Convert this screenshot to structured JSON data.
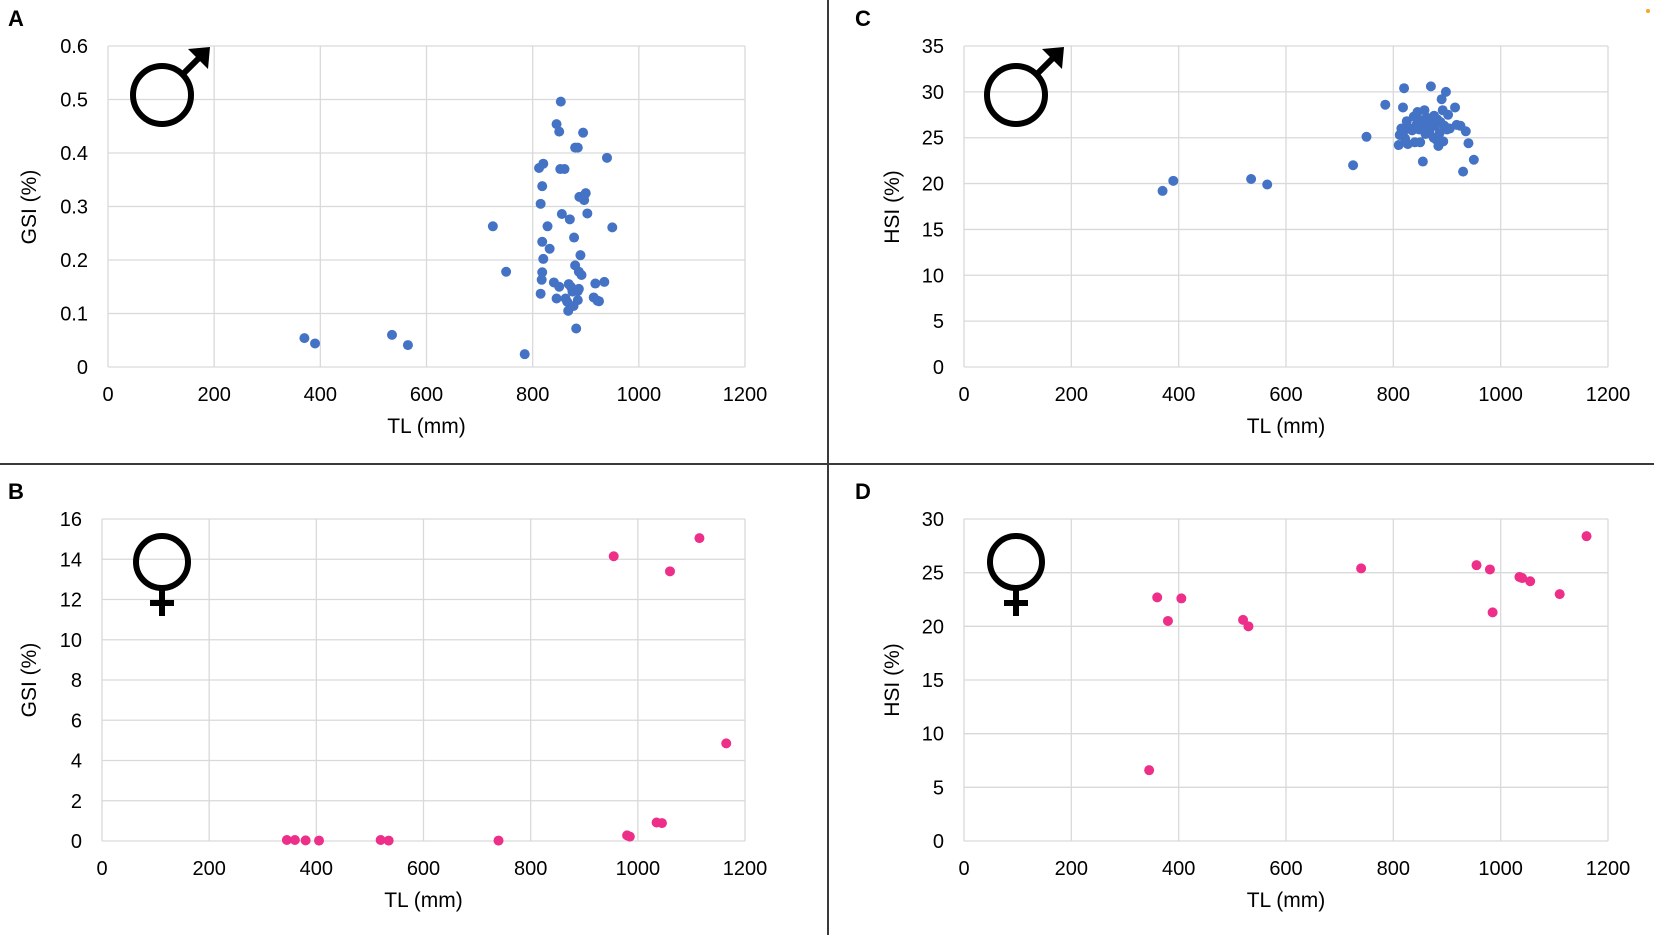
{
  "chart_data": [
    {
      "type": "scatter",
      "panel": "A",
      "sex_symbol": "male-symbol",
      "xlabel": "TL (mm)",
      "ylabel": "GSI (%)",
      "xlim": [
        0,
        1200
      ],
      "ylim": [
        0,
        0.6
      ],
      "xticks": [
        "0",
        "200",
        "400",
        "600",
        "800",
        "1000",
        "1200"
      ],
      "yticks": [
        "0",
        "0.1",
        "0.2",
        "0.3",
        "0.4",
        "0.5",
        "0.6"
      ],
      "grid": true,
      "color": "#4472c4",
      "points": [
        [
          370,
          0.054
        ],
        [
          390,
          0.044
        ],
        [
          535,
          0.06
        ],
        [
          565,
          0.041
        ],
        [
          725,
          0.263
        ],
        [
          750,
          0.178
        ],
        [
          785,
          0.024
        ],
        [
          812,
          0.372
        ],
        [
          815,
          0.137
        ],
        [
          815,
          0.305
        ],
        [
          817,
          0.163
        ],
        [
          818,
          0.177
        ],
        [
          818,
          0.234
        ],
        [
          818,
          0.338
        ],
        [
          820,
          0.38
        ],
        [
          820,
          0.202
        ],
        [
          828,
          0.263
        ],
        [
          832,
          0.221
        ],
        [
          840,
          0.158
        ],
        [
          845,
          0.454
        ],
        [
          845,
          0.128
        ],
        [
          850,
          0.44
        ],
        [
          850,
          0.15
        ],
        [
          852,
          0.37
        ],
        [
          853,
          0.496
        ],
        [
          855,
          0.286
        ],
        [
          860,
          0.37
        ],
        [
          862,
          0.128
        ],
        [
          865,
          0.122
        ],
        [
          867,
          0.105
        ],
        [
          868,
          0.155
        ],
        [
          870,
          0.276
        ],
        [
          872,
          0.15
        ],
        [
          875,
          0.141
        ],
        [
          877,
          0.114
        ],
        [
          878,
          0.242
        ],
        [
          880,
          0.41
        ],
        [
          880,
          0.19
        ],
        [
          882,
          0.072
        ],
        [
          885,
          0.41
        ],
        [
          885,
          0.125
        ],
        [
          885,
          0.142
        ],
        [
          887,
          0.178
        ],
        [
          887,
          0.146
        ],
        [
          888,
          0.318
        ],
        [
          890,
          0.209
        ],
        [
          892,
          0.172
        ],
        [
          895,
          0.438
        ],
        [
          897,
          0.312
        ],
        [
          898,
          0.322
        ],
        [
          900,
          0.325
        ],
        [
          903,
          0.287
        ],
        [
          915,
          0.13
        ],
        [
          918,
          0.156
        ],
        [
          922,
          0.124
        ],
        [
          925,
          0.123
        ],
        [
          935,
          0.159
        ],
        [
          940,
          0.391
        ],
        [
          950,
          0.261
        ]
      ]
    },
    {
      "type": "scatter",
      "panel": "B",
      "sex_symbol": "female-symbol",
      "xlabel": "TL (mm)",
      "ylabel": "GSI (%)",
      "xlim": [
        0,
        1200
      ],
      "ylim": [
        0,
        16
      ],
      "xticks": [
        "0",
        "200",
        "400",
        "600",
        "800",
        "1000",
        "1200"
      ],
      "yticks": [
        "0",
        "2",
        "4",
        "6",
        "8",
        "10",
        "12",
        "14",
        "16"
      ],
      "grid": true,
      "color": "#ed2f8a",
      "points": [
        [
          345,
          0.05
        ],
        [
          360,
          0.05
        ],
        [
          380,
          0.03
        ],
        [
          405,
          0.02
        ],
        [
          520,
          0.05
        ],
        [
          535,
          0.02
        ],
        [
          740,
          0.02
        ],
        [
          955,
          14.15
        ],
        [
          980,
          0.28
        ],
        [
          985,
          0.22
        ],
        [
          1035,
          0.92
        ],
        [
          1045,
          0.89
        ],
        [
          1060,
          13.4
        ],
        [
          1115,
          15.05
        ],
        [
          1165,
          4.85
        ]
      ]
    },
    {
      "type": "scatter",
      "panel": "C",
      "sex_symbol": "male-symbol",
      "xlabel": "TL (mm)",
      "ylabel": "HSI (%)",
      "xlim": [
        0,
        1200
      ],
      "ylim": [
        0,
        35
      ],
      "xticks": [
        "0",
        "200",
        "400",
        "600",
        "800",
        "1000",
        "1200"
      ],
      "yticks": [
        "0",
        "5",
        "10",
        "15",
        "20",
        "25",
        "30",
        "35"
      ],
      "grid": true,
      "color": "#4472c4",
      "points": [
        [
          370,
          19.2
        ],
        [
          390,
          20.3
        ],
        [
          535,
          20.5
        ],
        [
          565,
          19.9
        ],
        [
          725,
          22.0
        ],
        [
          750,
          25.1
        ],
        [
          785,
          28.6
        ],
        [
          810,
          24.2
        ],
        [
          812,
          25.3
        ],
        [
          815,
          26.0
        ],
        [
          818,
          28.3
        ],
        [
          818,
          25.5
        ],
        [
          820,
          30.4
        ],
        [
          822,
          24.9
        ],
        [
          825,
          26.8
        ],
        [
          827,
          24.3
        ],
        [
          830,
          26.0
        ],
        [
          835,
          25.8
        ],
        [
          838,
          27.3
        ],
        [
          840,
          24.5
        ],
        [
          843,
          26.4
        ],
        [
          845,
          27.8
        ],
        [
          848,
          25.9
        ],
        [
          850,
          24.5
        ],
        [
          852,
          26.9
        ],
        [
          855,
          22.4
        ],
        [
          857,
          26.2
        ],
        [
          858,
          28.0
        ],
        [
          860,
          25.4
        ],
        [
          862,
          27.2
        ],
        [
          865,
          26.5
        ],
        [
          867,
          25.7
        ],
        [
          870,
          30.6
        ],
        [
          872,
          26.8
        ],
        [
          875,
          25.0
        ],
        [
          876,
          27.4
        ],
        [
          878,
          26.3
        ],
        [
          880,
          24.8
        ],
        [
          882,
          27.0
        ],
        [
          884,
          24.1
        ],
        [
          886,
          25.5
        ],
        [
          888,
          26.7
        ],
        [
          890,
          29.2
        ],
        [
          892,
          28.0
        ],
        [
          893,
          24.6
        ],
        [
          895,
          26.3
        ],
        [
          898,
          30.0
        ],
        [
          900,
          25.9
        ],
        [
          902,
          27.5
        ],
        [
          905,
          26.0
        ],
        [
          915,
          28.3
        ],
        [
          918,
          26.4
        ],
        [
          925,
          26.3
        ],
        [
          930,
          21.3
        ],
        [
          935,
          25.7
        ],
        [
          940,
          24.4
        ],
        [
          950,
          22.6
        ]
      ]
    },
    {
      "type": "scatter",
      "panel": "D",
      "sex_symbol": "female-symbol",
      "xlabel": "TL (mm)",
      "ylabel": "HSI (%)",
      "xlim": [
        0,
        1200
      ],
      "ylim": [
        0,
        30
      ],
      "xticks": [
        "0",
        "200",
        "400",
        "600",
        "800",
        "1000",
        "1200"
      ],
      "yticks": [
        "0",
        "5",
        "10",
        "15",
        "20",
        "25",
        "30"
      ],
      "grid": true,
      "color": "#ed2f8a",
      "points": [
        [
          345,
          6.6
        ],
        [
          360,
          22.7
        ],
        [
          380,
          20.5
        ],
        [
          405,
          22.6
        ],
        [
          520,
          20.6
        ],
        [
          530,
          20.0
        ],
        [
          740,
          25.4
        ],
        [
          955,
          25.7
        ],
        [
          980,
          25.3
        ],
        [
          985,
          21.3
        ],
        [
          1035,
          24.6
        ],
        [
          1040,
          24.5
        ],
        [
          1055,
          24.2
        ],
        [
          1110,
          23.0
        ],
        [
          1160,
          28.4
        ]
      ]
    }
  ],
  "corner_mark": {
    "color": "#f5a623"
  }
}
